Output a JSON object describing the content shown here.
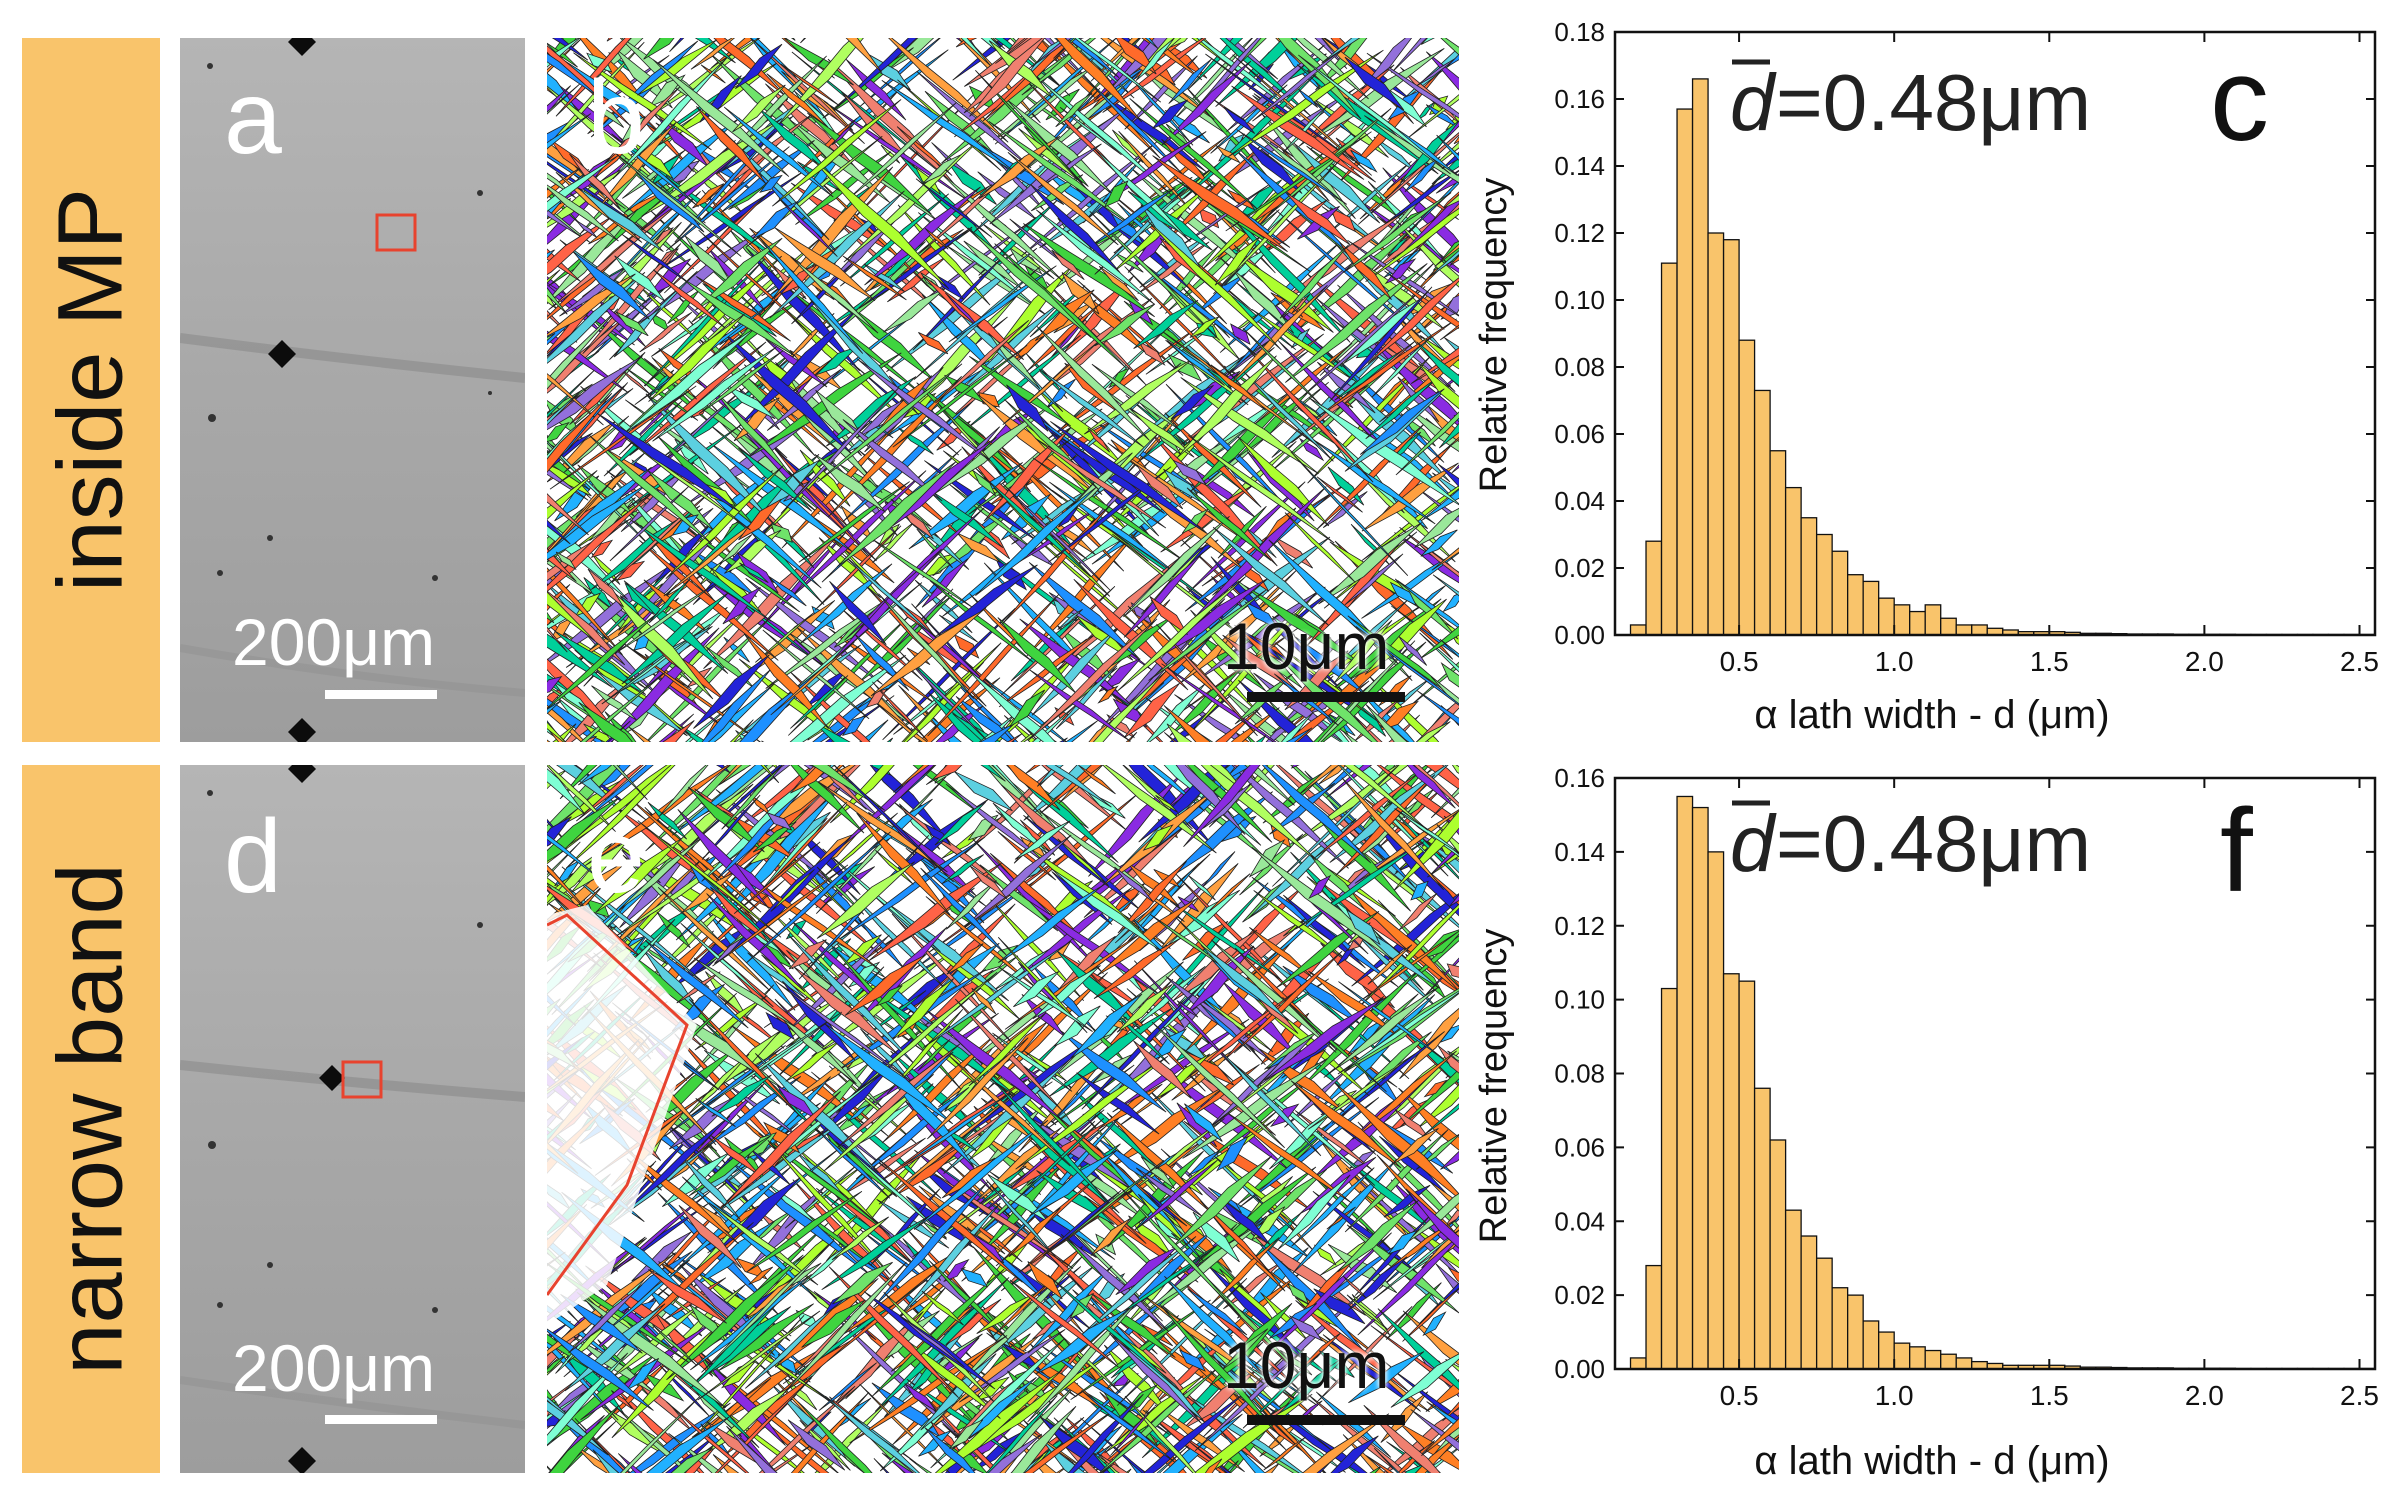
{
  "rows": [
    {
      "side_label": "inside MP",
      "sem_label": "a",
      "sem_scale": "200μm",
      "ebsd_label": "b",
      "ebsd_scale": "10μm",
      "chart_label": "c",
      "mean_text": "=0.48μm"
    },
    {
      "side_label": "narrow band",
      "sem_label": "d",
      "sem_scale": "200μm",
      "ebsd_label": "e",
      "ebsd_scale": "10μm",
      "chart_label": "f",
      "mean_text": "=0.48μm"
    }
  ],
  "mean_symbol": "d",
  "colors": {
    "side_bg": "#f9c46b",
    "bar_fill": "#f9c46b",
    "roi_box": "#e8432e"
  },
  "chart_data": [
    {
      "type": "bar",
      "title": "",
      "panel": "c",
      "xlabel": "α lath width - d (μm)",
      "ylabel": "Relative frequency",
      "xlim": [
        0.1,
        2.55
      ],
      "ylim": [
        0,
        0.18
      ],
      "bin_width": 0.05,
      "x_start": 0.15,
      "xticks": [
        "0.5",
        "1.0",
        "1.5",
        "2.0",
        "2.5"
      ],
      "yticks": [
        "0.00",
        "0.02",
        "0.04",
        "0.06",
        "0.08",
        "0.10",
        "0.12",
        "0.14",
        "0.16",
        "0.18"
      ],
      "annotation": "d̄=0.48μm",
      "values": [
        0.003,
        0.028,
        0.111,
        0.157,
        0.166,
        0.12,
        0.118,
        0.088,
        0.073,
        0.055,
        0.044,
        0.035,
        0.03,
        0.025,
        0.018,
        0.016,
        0.011,
        0.009,
        0.007,
        0.009,
        0.005,
        0.003,
        0.003,
        0.002,
        0.0015,
        0.001,
        0.001,
        0.001,
        0.0008,
        0.0005,
        0.0005,
        0.0004,
        0.0003,
        0.0003,
        0.0003,
        0.0002,
        0.0002,
        0.0002,
        0.0002,
        0.0001,
        0.0001,
        0.0001,
        0.0001,
        0.0001,
        0.0001,
        0.0001,
        0.0001,
        0.0001
      ]
    },
    {
      "type": "bar",
      "title": "",
      "panel": "f",
      "xlabel": "α lath width - d (μm)",
      "ylabel": "Relative frequency",
      "xlim": [
        0.1,
        2.55
      ],
      "ylim": [
        0,
        0.16
      ],
      "bin_width": 0.05,
      "x_start": 0.15,
      "xticks": [
        "0.5",
        "1.0",
        "1.5",
        "2.0",
        "2.5"
      ],
      "yticks": [
        "0.00",
        "0.02",
        "0.04",
        "0.06",
        "0.08",
        "0.10",
        "0.12",
        "0.14",
        "0.16"
      ],
      "annotation": "d̄=0.48μm",
      "values": [
        0.003,
        0.028,
        0.103,
        0.155,
        0.152,
        0.14,
        0.107,
        0.105,
        0.076,
        0.062,
        0.043,
        0.036,
        0.03,
        0.022,
        0.02,
        0.013,
        0.01,
        0.007,
        0.006,
        0.005,
        0.004,
        0.003,
        0.002,
        0.0015,
        0.001,
        0.001,
        0.001,
        0.001,
        0.0008,
        0.0005,
        0.0005,
        0.0004,
        0.0003,
        0.0003,
        0.0003,
        0.0002,
        0.0002,
        0.0002,
        0.0002,
        0.0001,
        0.0001,
        0.0001,
        0.0001,
        0.0001,
        0.0001,
        0.0001,
        0.0001,
        0.0001
      ]
    }
  ]
}
